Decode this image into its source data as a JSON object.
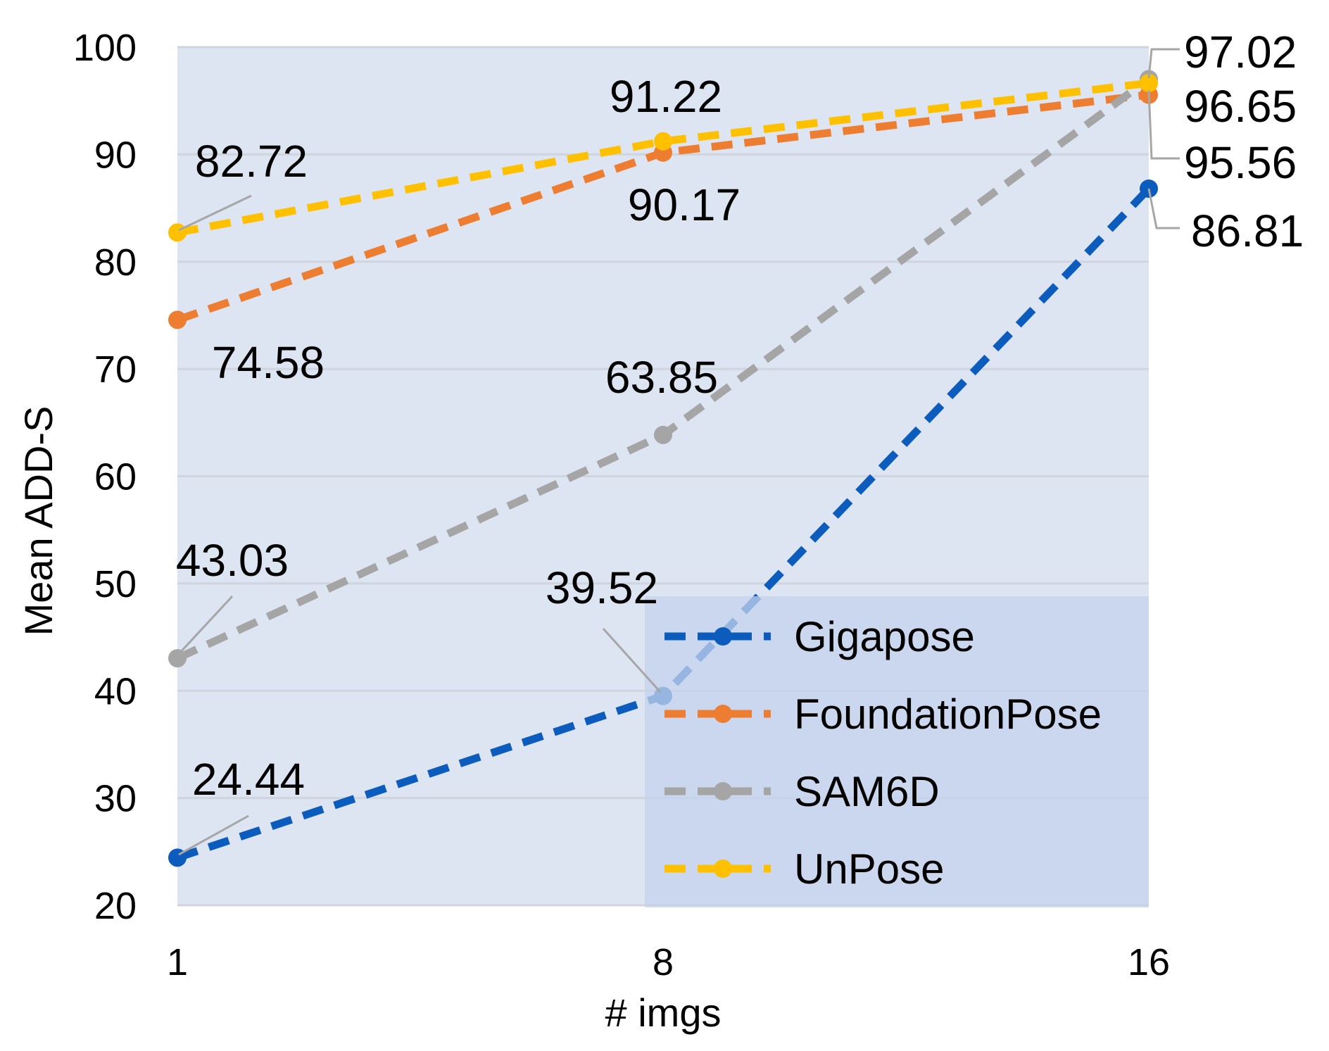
{
  "chart_data": {
    "type": "line",
    "title": "",
    "xlabel": "# imgs",
    "ylabel": "Mean ADD-S",
    "categories": [
      "1",
      "8",
      "16"
    ],
    "ylim": [
      20,
      100
    ],
    "yticks": [
      "20",
      "30",
      "40",
      "50",
      "60",
      "70",
      "80",
      "90",
      "100"
    ],
    "grid": true,
    "legend": "bottom-right",
    "background_color": "#dde4f2",
    "legend_color": "#c4d3ec",
    "series": [
      {
        "name": "Gigapose",
        "values": [
          24.44,
          39.52,
          86.81
        ],
        "labels": [
          "24.44",
          "39.52",
          "86.81"
        ],
        "color": "#0c5cbd"
      },
      {
        "name": "FoundationPose",
        "values": [
          74.58,
          90.17,
          95.56
        ],
        "labels": [
          "74.58",
          "90.17",
          "95.56"
        ],
        "color": "#ed7d31"
      },
      {
        "name": "SAM6D",
        "values": [
          43.03,
          63.85,
          97.02
        ],
        "labels": [
          "43.03",
          "63.85",
          "97.02"
        ],
        "color": "#a5a5a5"
      },
      {
        "name": "UnPose",
        "values": [
          82.72,
          91.22,
          96.65
        ],
        "labels": [
          "82.72",
          "91.22",
          "96.65"
        ],
        "color": "#ffc000"
      }
    ]
  }
}
